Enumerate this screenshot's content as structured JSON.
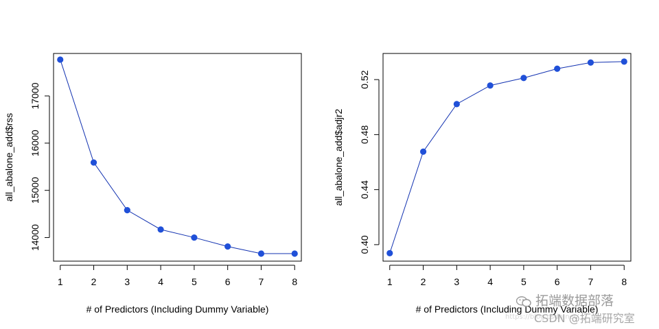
{
  "colors": {
    "series": "#2050d8",
    "line": "#1030b0",
    "axis": "#000000"
  },
  "chart_data": [
    {
      "type": "line",
      "title": "",
      "xlabel": "# of Predictors (Including Dummy Variable)",
      "ylabel": "all_abalone_add$rss",
      "x": [
        1,
        2,
        3,
        4,
        5,
        6,
        7,
        8
      ],
      "series": [
        {
          "name": "rss",
          "values": [
            17770,
            15590,
            14580,
            14170,
            14000,
            13810,
            13660,
            13660
          ]
        }
      ],
      "xlim": [
        0.8,
        8.2
      ],
      "ylim": [
        13500,
        17900
      ],
      "xticks": [
        1,
        2,
        3,
        4,
        5,
        6,
        7,
        8
      ],
      "xtick_labels": [
        "1",
        "2",
        "3",
        "4",
        "5",
        "6",
        "7",
        "8"
      ],
      "yticks": [
        14000,
        15000,
        16000,
        17000
      ],
      "ytick_labels": [
        "14000",
        "15000",
        "16000",
        "17000"
      ],
      "grid": false,
      "markers": "filled-circle"
    },
    {
      "type": "line",
      "title": "",
      "xlabel": "# of Predictors (Including Dummy Variable)",
      "ylabel": "all_abalone_add$adjr2",
      "x": [
        1,
        2,
        3,
        4,
        5,
        6,
        7,
        8
      ],
      "series": [
        {
          "name": "adjr2",
          "values": [
            0.3938,
            0.4676,
            0.5022,
            0.5157,
            0.5212,
            0.5279,
            0.5324,
            0.5331
          ]
        }
      ],
      "xlim": [
        0.8,
        8.2
      ],
      "ylim": [
        0.388,
        0.539
      ],
      "xticks": [
        1,
        2,
        3,
        4,
        5,
        6,
        7,
        8
      ],
      "xtick_labels": [
        "1",
        "2",
        "3",
        "4",
        "5",
        "6",
        "7",
        "8"
      ],
      "yticks": [
        0.4,
        0.44,
        0.48,
        0.52
      ],
      "ytick_labels": [
        "0.40",
        "0.44",
        "0.48",
        "0.52"
      ],
      "grid": false,
      "markers": "filled-circle"
    }
  ],
  "watermark": {
    "line1": "拓端数据部落",
    "line2": "CSDN @拓端研究室",
    "line3": "https://blog.csdn.net/"
  }
}
